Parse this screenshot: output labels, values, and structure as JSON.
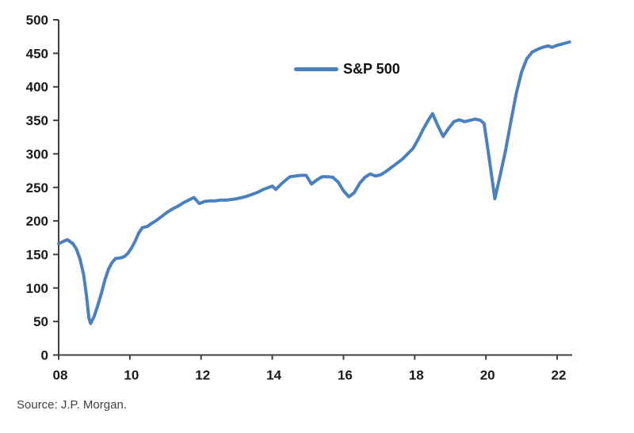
{
  "page": {
    "background": "#ffffff"
  },
  "legend": {
    "label": "S&P 500"
  },
  "source": {
    "text": "Source: J.P. Morgan."
  },
  "colors": {
    "line": "#4a80bd",
    "axis": "#3f3f3f",
    "tick_text": "#1a1a1a",
    "source_text": "#404040"
  },
  "chart_data": {
    "type": "line",
    "title": "",
    "xlabel": "",
    "ylabel": "",
    "grid": false,
    "legend_position": "top-center",
    "legend_entries": [
      "S&P 500"
    ],
    "xlim": [
      2008,
      2022.45
    ],
    "ylim": [
      0,
      500
    ],
    "x_tick_years": [
      2008,
      2010,
      2012,
      2014,
      2016,
      2018,
      2020,
      2022
    ],
    "x_tick_labels": [
      "08",
      "10",
      "12",
      "14",
      "16",
      "18",
      "20",
      "22"
    ],
    "y_ticks": [
      0,
      50,
      100,
      150,
      200,
      250,
      300,
      350,
      400,
      450,
      500
    ],
    "series": [
      {
        "name": "S&P 500",
        "color": "#4a80bd",
        "x": [
          2008.0,
          2008.15,
          2008.25,
          2008.4,
          2008.5,
          2008.6,
          2008.7,
          2008.78,
          2008.85,
          2008.9,
          2009.0,
          2009.1,
          2009.2,
          2009.3,
          2009.4,
          2009.5,
          2009.6,
          2009.75,
          2009.85,
          2009.95,
          2010.05,
          2010.15,
          2010.25,
          2010.35,
          2010.5,
          2010.6,
          2010.75,
          2010.9,
          2011.05,
          2011.2,
          2011.35,
          2011.5,
          2011.65,
          2011.8,
          2011.95,
          2012.1,
          2012.25,
          2012.4,
          2012.55,
          2012.7,
          2012.85,
          2013.0,
          2013.15,
          2013.3,
          2013.45,
          2013.6,
          2013.75,
          2013.9,
          2014.0,
          2014.1,
          2014.25,
          2014.4,
          2014.5,
          2014.65,
          2014.8,
          2014.95,
          2015.1,
          2015.25,
          2015.4,
          2015.55,
          2015.7,
          2015.85,
          2016.0,
          2016.15,
          2016.3,
          2016.45,
          2016.6,
          2016.75,
          2016.9,
          2017.05,
          2017.2,
          2017.35,
          2017.5,
          2017.65,
          2017.8,
          2017.95,
          2018.1,
          2018.25,
          2018.4,
          2018.5,
          2018.65,
          2018.8,
          2018.95,
          2019.1,
          2019.25,
          2019.4,
          2019.55,
          2019.7,
          2019.85,
          2019.95,
          2020.1,
          2020.25,
          2020.4,
          2020.55,
          2020.7,
          2020.85,
          2021.0,
          2021.15,
          2021.3,
          2021.45,
          2021.6,
          2021.75,
          2021.85,
          2022.0,
          2022.15,
          2022.35
        ],
        "y": [
          166,
          170,
          172,
          166,
          158,
          143,
          120,
          90,
          55,
          47,
          58,
          74,
          92,
          112,
          128,
          138,
          144,
          145,
          147,
          152,
          160,
          170,
          182,
          190,
          192,
          196,
          201,
          207,
          213,
          218,
          222,
          227,
          231,
          235,
          226,
          229,
          230,
          230,
          231,
          231,
          232,
          233,
          235,
          237,
          240,
          243,
          247,
          250,
          252,
          247,
          255,
          262,
          266,
          267,
          268,
          268,
          255,
          261,
          266,
          266,
          265,
          258,
          245,
          236,
          242,
          256,
          265,
          270,
          267,
          269,
          274,
          280,
          286,
          292,
          300,
          308,
          322,
          338,
          352,
          360,
          342,
          326,
          338,
          348,
          351,
          348,
          350,
          352,
          350,
          345,
          290,
          233,
          268,
          305,
          348,
          390,
          422,
          442,
          452,
          456,
          459,
          461,
          459,
          462,
          464,
          467
        ]
      }
    ]
  }
}
